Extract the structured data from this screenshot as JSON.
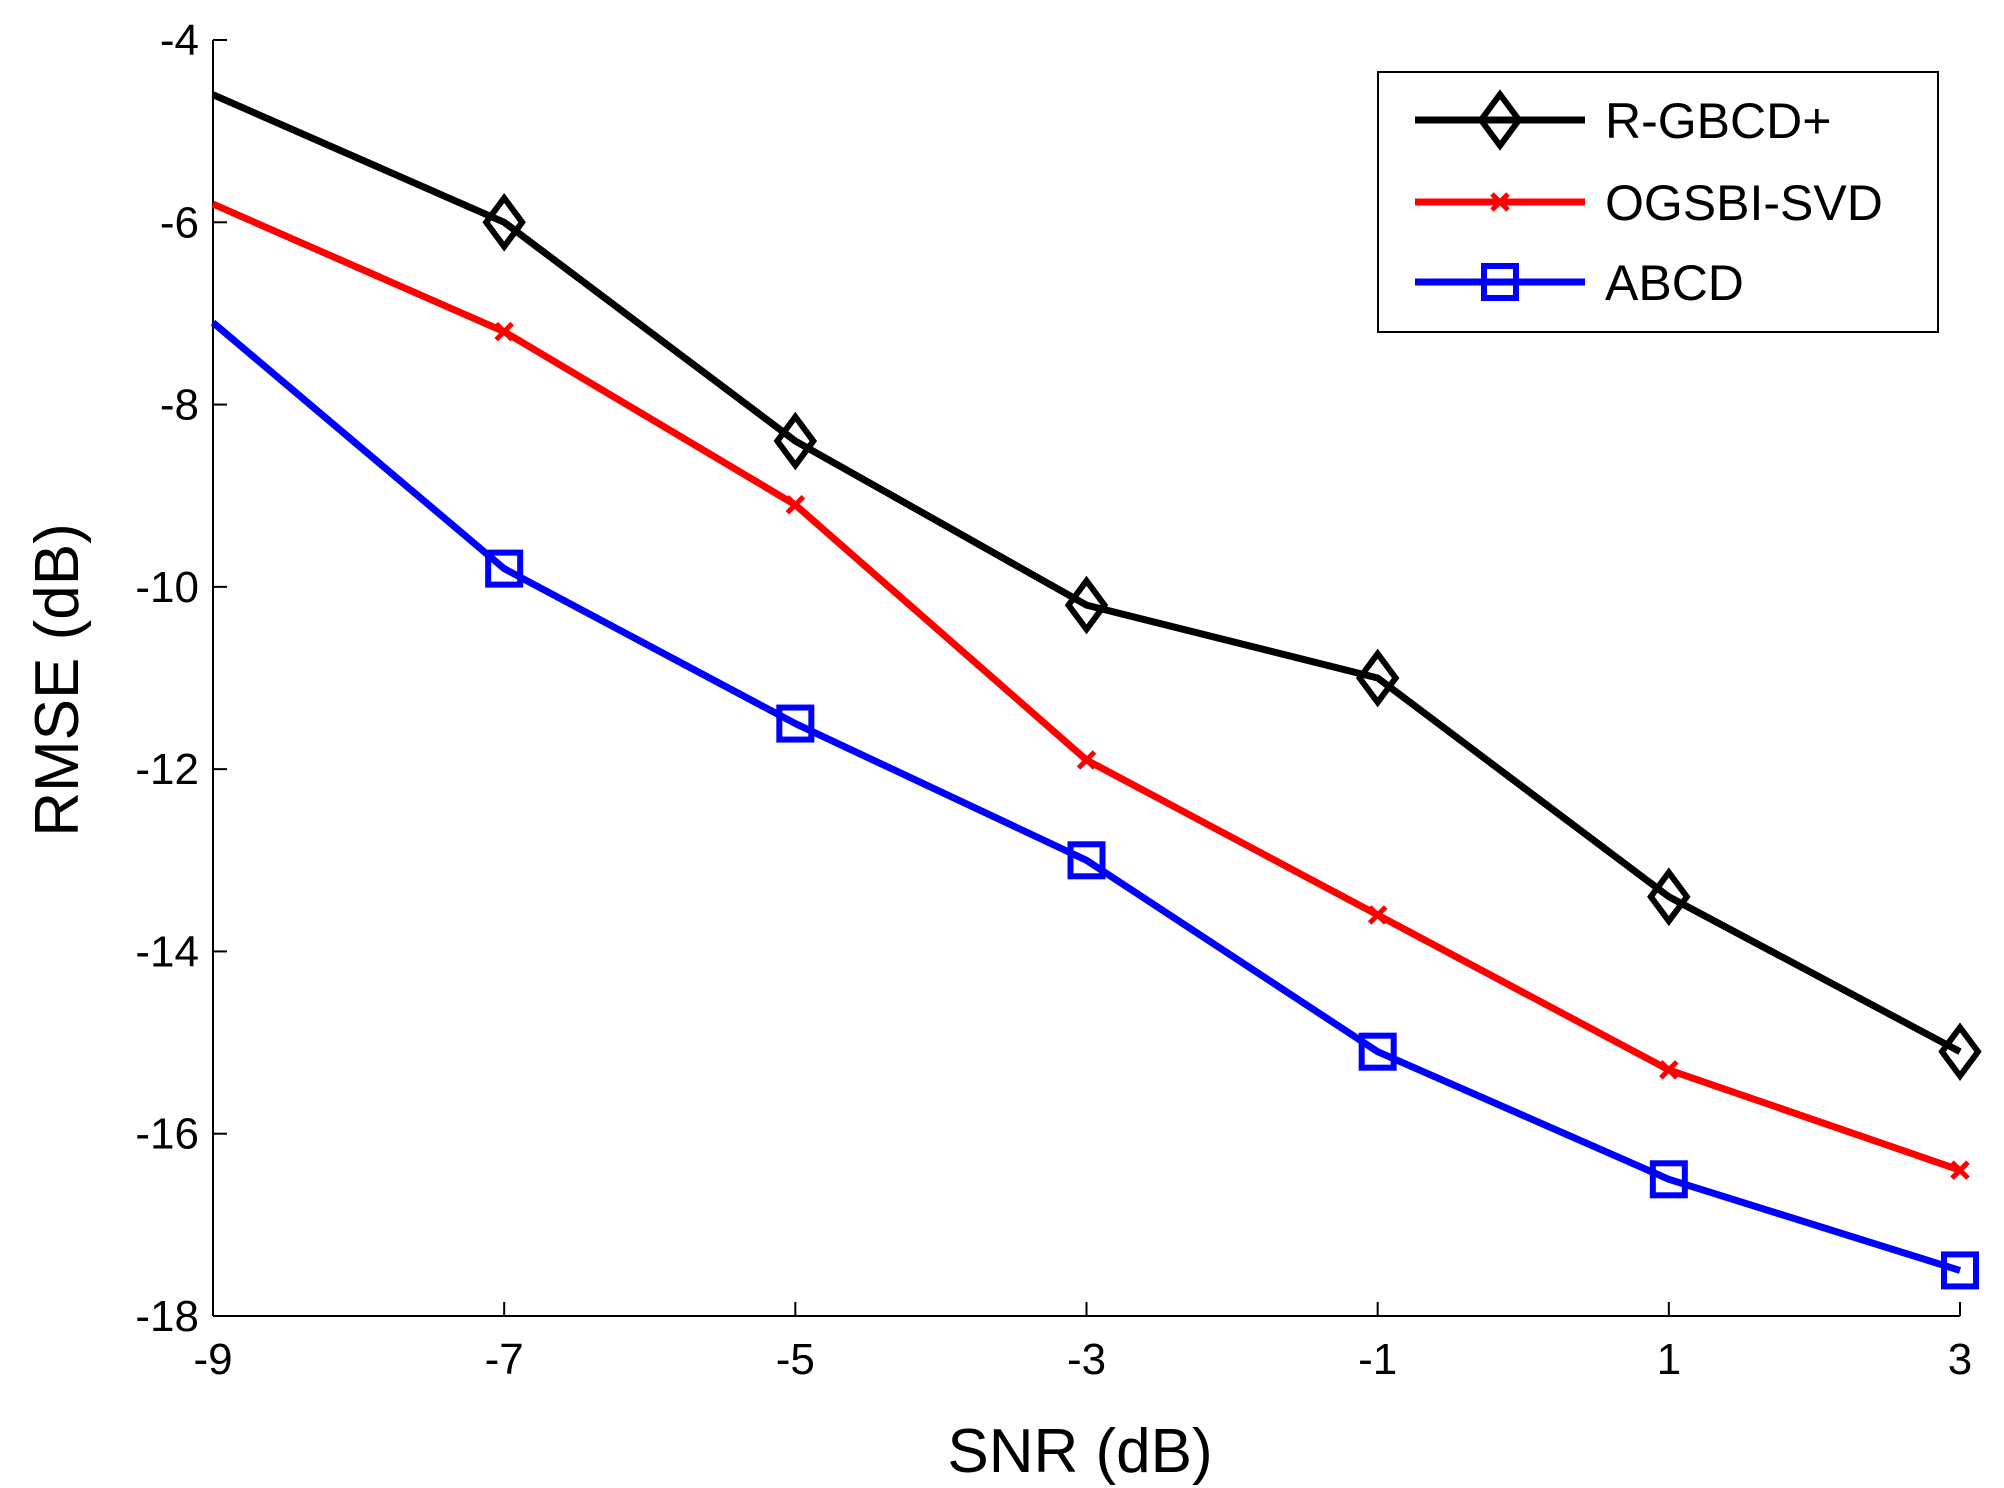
{
  "chart_data": {
    "type": "line",
    "title": "",
    "xlabel": "SNR (dB)",
    "ylabel": "RMSE (dB)",
    "x": [
      -9,
      -7,
      -5,
      -3,
      -1,
      1,
      3
    ],
    "xlim": [
      -9,
      3
    ],
    "ylim": [
      -18,
      -4
    ],
    "xticks": [
      "-9",
      "-7",
      "-5",
      "-3",
      "-1",
      "1",
      "3"
    ],
    "yticks": [
      "-4",
      "-6",
      "-8",
      "-10",
      "-12",
      "-14",
      "-16",
      "-18"
    ],
    "grid": false,
    "legend_position": "top-right",
    "series": [
      {
        "name": "R-GBCD+",
        "color": "#000000",
        "marker": "diamond",
        "values": [
          -4.6,
          -6.0,
          -8.4,
          -10.2,
          -11.0,
          -13.4,
          -15.1
        ],
        "marker_indices": [
          1,
          2,
          3,
          4,
          5,
          6
        ]
      },
      {
        "name": "OGSBI-SVD",
        "color": "#ff0000",
        "marker": "x",
        "values": [
          -5.8,
          -7.2,
          -9.1,
          -11.9,
          -13.6,
          -15.3,
          -16.4
        ],
        "marker_indices": [
          1,
          2,
          3,
          4,
          5,
          6
        ]
      },
      {
        "name": "ABCD",
        "color": "#0000ff",
        "marker": "square",
        "values": [
          -7.1,
          -9.8,
          -11.5,
          -13.0,
          -15.1,
          -16.5,
          -17.5
        ],
        "marker_indices": [
          1,
          2,
          3,
          4,
          5,
          6
        ]
      }
    ]
  }
}
